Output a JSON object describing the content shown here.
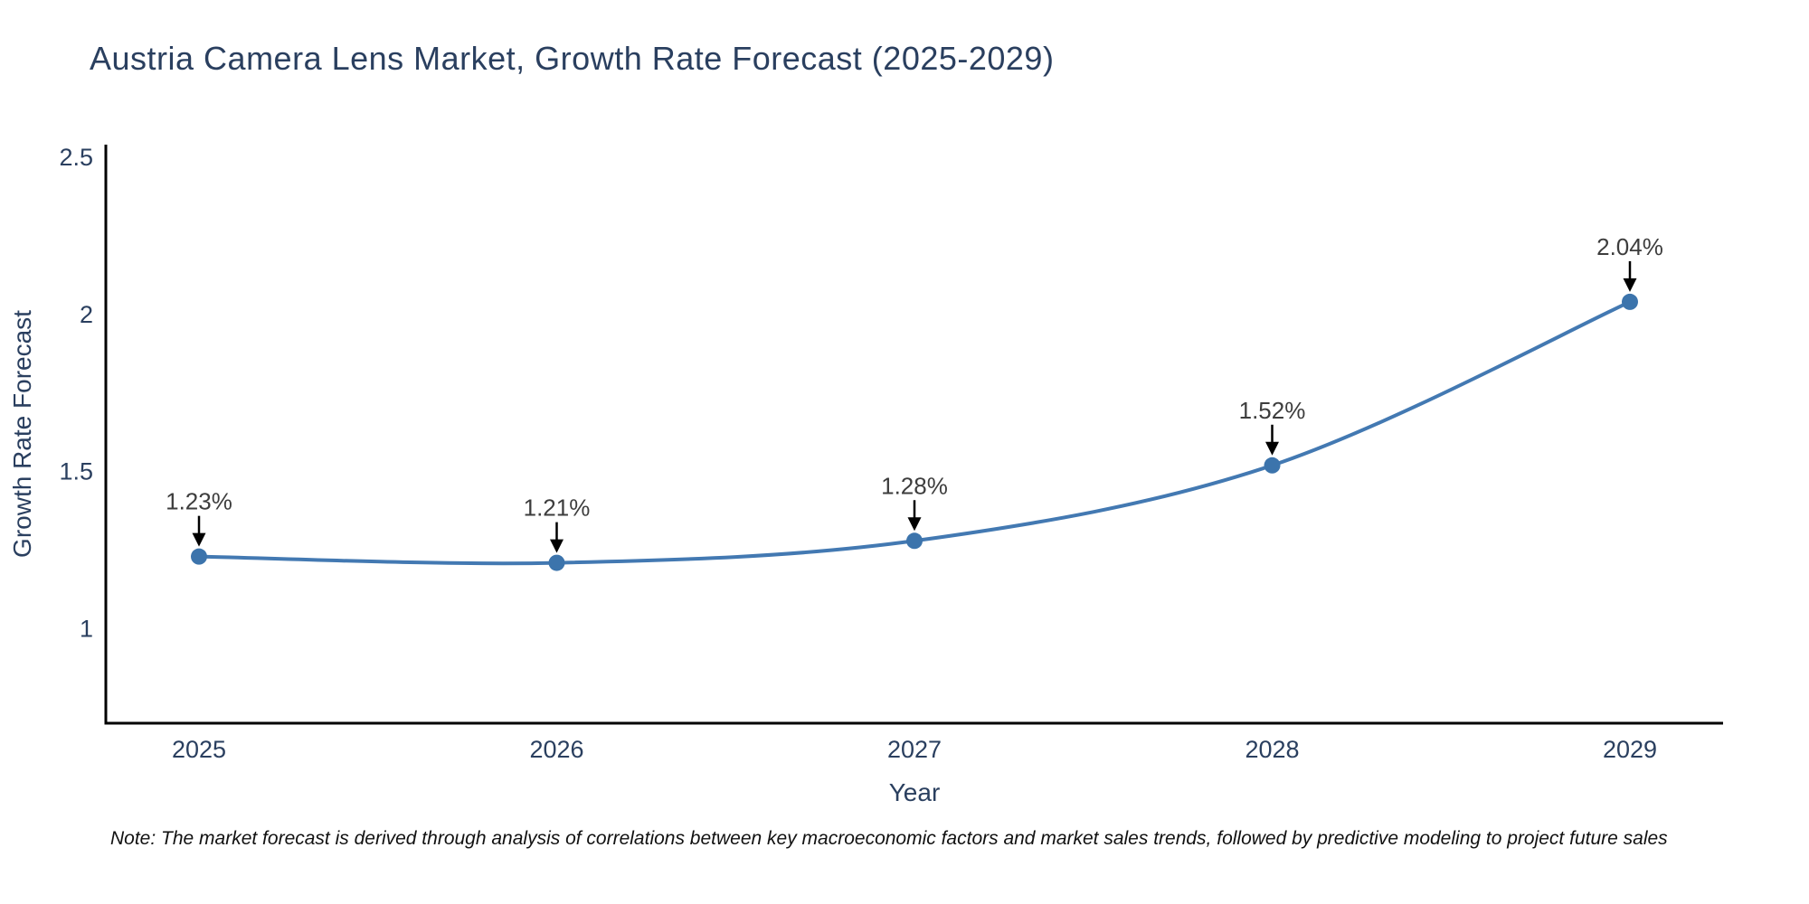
{
  "note": "Note: The market forecast is derived through analysis of correlations between key macroeconomic factors and market sales trends, followed by predictive modeling to project future sales",
  "chart_data": {
    "type": "line",
    "title": "Austria Camera Lens Market, Growth Rate Forecast (2025-2029)",
    "xlabel": "Year",
    "ylabel": "Growth Rate Forecast",
    "categories": [
      "2025",
      "2026",
      "2027",
      "2028",
      "2029"
    ],
    "values": [
      1.23,
      1.21,
      1.28,
      1.52,
      2.04
    ],
    "point_labels": [
      "1.23%",
      "1.21%",
      "1.28%",
      "1.52%",
      "2.04%"
    ],
    "yticks": [
      "1",
      "1.5",
      "2",
      "2.5"
    ],
    "ytick_values": [
      1,
      1.5,
      2,
      2.5
    ],
    "ylim": [
      0.7,
      2.54
    ],
    "line_shape": "spline",
    "grid": false,
    "legend_position": "none",
    "line_color": "#4379b2",
    "marker_color": "#3c74ac",
    "axis_color": "#000000",
    "title_color": "#2a3f5f",
    "tick_color": "#2a3f5f",
    "annotation_text_color": "#3d3d3d",
    "annotation_arrow_color": "#000000"
  }
}
